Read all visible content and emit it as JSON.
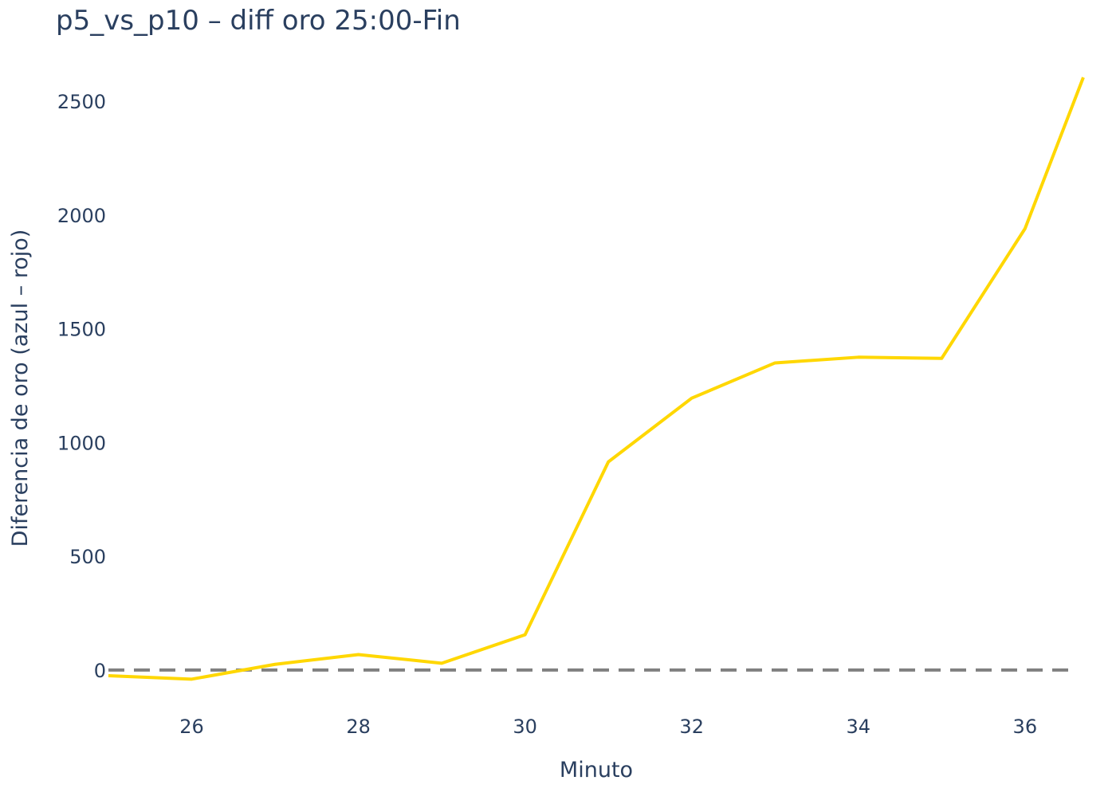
{
  "chart_data": {
    "type": "line",
    "title": "p5_vs_p10 – diff oro 25:00-Fin",
    "xlabel": "Minuto",
    "ylabel": "Diferencia de oro (azul – rojo)",
    "xlim": [
      25,
      36.7
    ],
    "ylim": [
      -200,
      2700
    ],
    "x_ticks": [
      26,
      28,
      30,
      32,
      34,
      36
    ],
    "y_ticks": [
      0,
      500,
      1000,
      1500,
      2000,
      2500
    ],
    "grid": false,
    "reference_line": {
      "y": 0,
      "style": "dashed",
      "color": "#808080"
    },
    "series": [
      {
        "color": "#FFD700",
        "x": [
          25,
          26,
          27,
          28,
          29,
          30,
          31,
          32,
          33,
          34,
          35,
          36,
          36.7
        ],
        "y": [
          -25,
          -40,
          25,
          68,
          30,
          155,
          915,
          1195,
          1350,
          1375,
          1370,
          1940,
          2605
        ]
      }
    ]
  }
}
